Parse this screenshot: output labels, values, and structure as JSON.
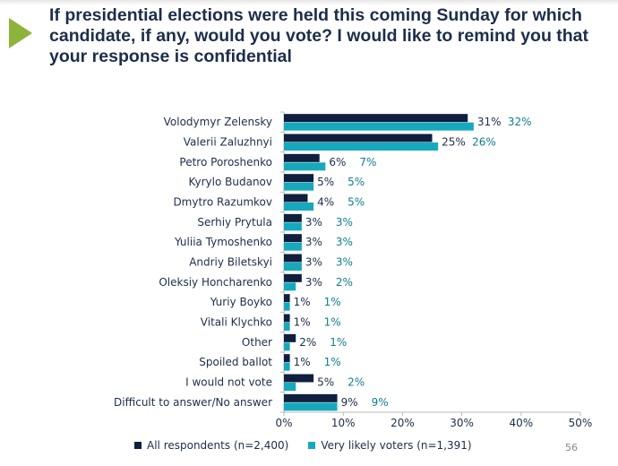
{
  "title": "If presidential elections were held this coming Sunday for which candidate, if any, would you vote? I would like to remind you that your response is confidential",
  "page_number": "56",
  "chart_data": {
    "type": "bar",
    "orientation": "horizontal",
    "categories": [
      "Volodymyr Zelensky",
      "Valerii Zaluzhnyi",
      "Petro Poroshenko",
      "Kyrylo Budanov",
      "Dmytro Razumkov",
      "Serhiy Prytula",
      "Yuliia Tymoshenko",
      "Andriy Biletskyi",
      "Oleksiy Honcharenko",
      "Yuriy Boyko",
      "Vitali Klychko",
      "Other",
      "Spoiled ballot",
      "I would not vote",
      "Difficult to answer/No answer"
    ],
    "series": [
      {
        "name": "All respondents (n=2,400)",
        "color": "#0f1f3d",
        "values": [
          31,
          25,
          6,
          5,
          4,
          3,
          3,
          3,
          3,
          1,
          1,
          2,
          1,
          5,
          9
        ]
      },
      {
        "name": "Very likely voters (n=1,391)",
        "color": "#16a9bd",
        "values": [
          32,
          26,
          7,
          5,
          5,
          3,
          3,
          3,
          2,
          1,
          1,
          1,
          1,
          2,
          9
        ]
      }
    ],
    "xlim": [
      0,
      50
    ],
    "xticks": [
      "0%",
      "10%",
      "20%",
      "30%",
      "40%",
      "50%"
    ],
    "grid": false,
    "legend": "bottom"
  }
}
